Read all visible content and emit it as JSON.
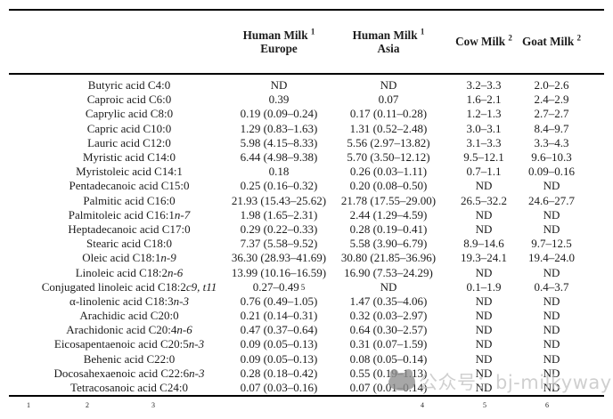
{
  "watermark": {
    "text": "公众号：bj-milkyway"
  },
  "table": {
    "columns": [
      {
        "name": ""
      },
      {
        "name": "Human Milk",
        "sup": "1",
        "sub": "Europe"
      },
      {
        "name": "Human Milk",
        "sup": "1",
        "sub": "Asia"
      },
      {
        "name": "Cow Milk",
        "sup": "2"
      },
      {
        "name": "Goat Milk",
        "sup": "2"
      }
    ],
    "rows": [
      {
        "label": "Butyric acid C4:0",
        "label_it": "",
        "eu": "ND",
        "eu_sup": "",
        "asia": "ND",
        "cow": "3.2–3.3",
        "goat": "2.0–2.6"
      },
      {
        "label": "Caproic acid C6:0",
        "label_it": "",
        "eu": "0.39",
        "eu_sup": "",
        "asia": "0.07",
        "cow": "1.6–2.1",
        "goat": "2.4–2.9"
      },
      {
        "label": "Caprylic acid C8:0",
        "label_it": "",
        "eu": "0.19 (0.09–0.24)",
        "eu_sup": "",
        "asia": "0.17 (0.11–0.28)",
        "cow": "1.2–1.3",
        "goat": "2.7–2.7"
      },
      {
        "label": "Capric acid C10:0",
        "label_it": "",
        "eu": "1.29 (0.83–1.63)",
        "eu_sup": "",
        "asia": "1.31 (0.52–2.48)",
        "cow": "3.0–3.1",
        "goat": "8.4–9.7"
      },
      {
        "label": "Lauric acid C12:0",
        "label_it": "",
        "eu": "5.98 (4.15–8.33)",
        "eu_sup": "",
        "asia": "5.56 (2.97–13.82)",
        "cow": "3.1–3.3",
        "goat": "3.3–4.3"
      },
      {
        "label": "Myristic acid C14:0",
        "label_it": "",
        "eu": "6.44 (4.98–9.38)",
        "eu_sup": "",
        "asia": "5.70 (3.50–12.12)",
        "cow": "9.5–12.1",
        "goat": "9.6–10.3"
      },
      {
        "label": "Myristoleic acid C14:1",
        "label_it": "",
        "eu": "0.18",
        "eu_sup": "",
        "asia": "0.26 (0.03–1.11)",
        "cow": "0.7–1.1",
        "goat": "0.09–0.16"
      },
      {
        "label": "Pentadecanoic acid C15:0",
        "label_it": "",
        "eu": "0.25 (0.16–0.32)",
        "eu_sup": "",
        "asia": "0.20 (0.08–0.50)",
        "cow": "ND",
        "goat": "ND"
      },
      {
        "label": "Palmitic acid C16:0",
        "label_it": "",
        "eu": "21.93 (15.43–25.62)",
        "eu_sup": "",
        "asia": "21.78 (17.55–29.00)",
        "cow": "26.5–32.2",
        "goat": "24.6–27.7"
      },
      {
        "label": "Palmitoleic acid C16:1 ",
        "label_it": "n-7",
        "eu": "1.98 (1.65–2.31)",
        "eu_sup": "",
        "asia": "2.44 (1.29–4.59)",
        "cow": "ND",
        "goat": "ND"
      },
      {
        "label": "Heptadecanoic acid C17:0",
        "label_it": "",
        "eu": "0.29 (0.22–0.33)",
        "eu_sup": "",
        "asia": "0.28 (0.19–0.41)",
        "cow": "ND",
        "goat": "ND"
      },
      {
        "label": "Stearic acid C18:0",
        "label_it": "",
        "eu": "7.37 (5.58–9.52)",
        "eu_sup": "",
        "asia": "5.58 (3.90–6.79)",
        "cow": "8.9–14.6",
        "goat": "9.7–12.5"
      },
      {
        "label": "Oleic acid C18:1 ",
        "label_it": "n-9",
        "eu": "36.30 (28.93–41.69)",
        "eu_sup": "",
        "asia": "30.80 (21.85–36.96)",
        "cow": "19.3–24.1",
        "goat": "19.4–24.0"
      },
      {
        "label": "Linoleic acid C18:2 ",
        "label_it": "n-6",
        "eu": "13.99 (10.16–16.59)",
        "eu_sup": "",
        "asia": "16.90 (7.53–24.29)",
        "cow": "ND",
        "goat": "ND"
      },
      {
        "label": "Conjugated linoleic acid C18:2 ",
        "label_it": "c9, t11",
        "eu": "0.27–0.49",
        "eu_sup": "5",
        "asia": "ND",
        "cow": "0.1–1.9",
        "goat": "0.4–3.7"
      },
      {
        "label": "α-linolenic acid C18:3 ",
        "label_it": "n-3",
        "eu": "0.76 (0.49–1.05)",
        "eu_sup": "",
        "asia": "1.47 (0.35–4.06)",
        "cow": "ND",
        "goat": "ND"
      },
      {
        "label": "Arachidic acid C20:0",
        "label_it": "",
        "eu": "0.21 (0.14–0.31)",
        "eu_sup": "",
        "asia": "0.32 (0.03–2.97)",
        "cow": "ND",
        "goat": "ND"
      },
      {
        "label": "Arachidonic acid C20:4 ",
        "label_it": "n-6",
        "eu": "0.47 (0.37–0.64)",
        "eu_sup": "",
        "asia": "0.64 (0.30–2.57)",
        "cow": "ND",
        "goat": "ND"
      },
      {
        "label": "Eicosapentaenoic acid C20:5 ",
        "label_it": "n-3",
        "eu": "0.09 (0.05–0.13)",
        "eu_sup": "",
        "asia": "0.31 (0.07–1.59)",
        "cow": "ND",
        "goat": "ND"
      },
      {
        "label": "Behenic acid C22:0",
        "label_it": "",
        "eu": "0.09 (0.05–0.13)",
        "eu_sup": "",
        "asia": "0.08 (0.05–0.14)",
        "cow": "ND",
        "goat": "ND"
      },
      {
        "label": "Docosahexaenoic acid C22:6 ",
        "label_it": "n-3",
        "eu": "0.28 (0.18–0.42)",
        "eu_sup": "",
        "asia": "0.55 (0.19–1.13)",
        "cow": "ND",
        "goat": "ND"
      },
      {
        "label": "Tetracosanoic acid C24:0",
        "label_it": "",
        "eu": "0.07 (0.03–0.16)",
        "eu_sup": "",
        "asia": "0.07 (0.01–0.14)",
        "cow": "ND",
        "goat": "ND"
      }
    ],
    "footnote_superscripts": [
      "1",
      "2",
      "3",
      "4",
      "5",
      "6"
    ]
  }
}
